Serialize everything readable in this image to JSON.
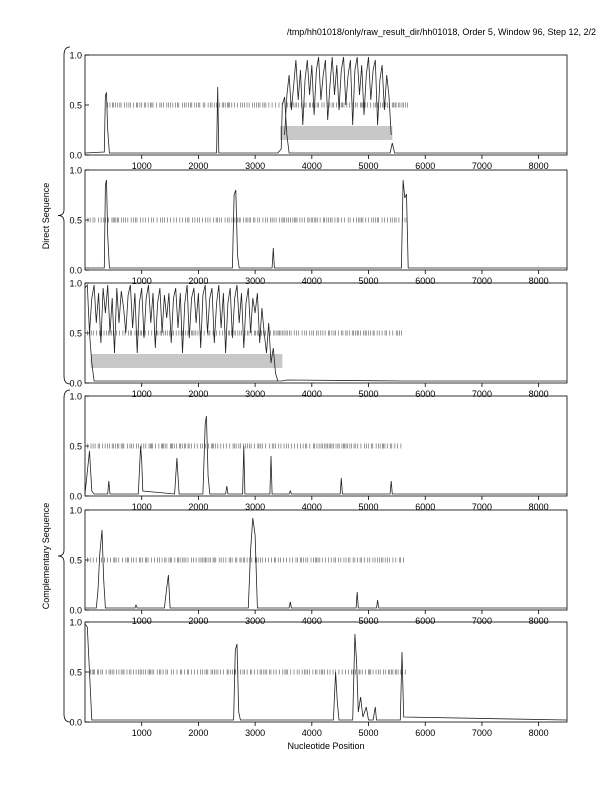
{
  "header": {
    "title": "/tmp/hh01018/only/raw_result_dir/hh01018, Order 5, Window 96, Step 12, 2/2"
  },
  "chart_data": {
    "type": "line",
    "xlabel": "Nucleotide Position",
    "group_labels": [
      "Direct Sequence",
      "Complementary Sequence"
    ],
    "xlim": [
      0,
      8500
    ],
    "ylim": [
      0,
      1
    ],
    "xticks": [
      1000,
      2000,
      3000,
      4000,
      5000,
      6000,
      7000,
      8000
    ],
    "yticks": [
      "0.0",
      "0.5",
      "1.0"
    ],
    "grid": false,
    "panels": [
      {
        "group": "Direct Sequence",
        "baseline": [
          [
            0,
            0.02
          ],
          [
            340,
            0.03
          ],
          [
            360,
            0.6
          ],
          [
            380,
            0.62
          ],
          [
            400,
            0.25
          ],
          [
            430,
            0.02
          ],
          [
            2320,
            0.02
          ],
          [
            2340,
            0.68
          ],
          [
            2360,
            0.02
          ],
          [
            3400,
            0.02
          ],
          [
            3460,
            0.06
          ],
          [
            3480,
            0.5
          ],
          [
            3520,
            0.58
          ],
          [
            3560,
            0.2
          ],
          [
            3600,
            0.02
          ],
          [
            5380,
            0.02
          ],
          [
            5420,
            0.12
          ],
          [
            5460,
            0.02
          ],
          [
            8500,
            0.02
          ]
        ],
        "signal": [
          [
            3520,
            0.2
          ],
          [
            3560,
            0.6
          ],
          [
            3600,
            0.8
          ],
          [
            3640,
            0.45
          ],
          [
            3680,
            0.7
          ],
          [
            3720,
            0.95
          ],
          [
            3760,
            0.55
          ],
          [
            3800,
            0.85
          ],
          [
            3840,
            0.3
          ],
          [
            3880,
            0.75
          ],
          [
            3920,
            0.95
          ],
          [
            3960,
            0.6
          ],
          [
            4000,
            0.9
          ],
          [
            4040,
            0.4
          ],
          [
            4080,
            0.85
          ],
          [
            4120,
            0.98
          ],
          [
            4160,
            0.55
          ],
          [
            4200,
            0.8
          ],
          [
            4240,
            0.95
          ],
          [
            4280,
            0.35
          ],
          [
            4320,
            0.7
          ],
          [
            4360,
            0.98
          ],
          [
            4400,
            0.6
          ],
          [
            4440,
            0.9
          ],
          [
            4480,
            0.45
          ],
          [
            4520,
            0.85
          ],
          [
            4560,
            0.98
          ],
          [
            4600,
            0.5
          ],
          [
            4640,
            0.8
          ],
          [
            4680,
            0.95
          ],
          [
            4720,
            0.3
          ],
          [
            4760,
            0.85
          ],
          [
            4800,
            0.98
          ],
          [
            4840,
            0.6
          ],
          [
            4880,
            0.9
          ],
          [
            4920,
            0.4
          ],
          [
            4960,
            0.8
          ],
          [
            5000,
            0.98
          ],
          [
            5040,
            0.55
          ],
          [
            5080,
            0.85
          ],
          [
            5120,
            0.95
          ],
          [
            5160,
            0.3
          ],
          [
            5200,
            0.75
          ],
          [
            5240,
            0.9
          ],
          [
            5280,
            0.45
          ],
          [
            5320,
            0.8
          ],
          [
            5360,
            0.6
          ],
          [
            5400,
            0.2
          ]
        ],
        "ticks_y": 0.5,
        "ticks_range": [
          400,
          5700
        ],
        "band": {
          "x_from": 3440,
          "x_to": 5420,
          "y": 0.22
        }
      },
      {
        "group": "Direct Sequence",
        "baseline": [
          [
            0,
            0.02
          ],
          [
            340,
            0.02
          ],
          [
            360,
            0.85
          ],
          [
            380,
            0.9
          ],
          [
            400,
            0.35
          ],
          [
            430,
            0.02
          ],
          [
            2600,
            0.02
          ],
          [
            2630,
            0.75
          ],
          [
            2660,
            0.8
          ],
          [
            2690,
            0.15
          ],
          [
            2720,
            0.02
          ],
          [
            3300,
            0.02
          ],
          [
            3320,
            0.22
          ],
          [
            3340,
            0.02
          ],
          [
            5580,
            0.02
          ],
          [
            5610,
            0.9
          ],
          [
            5640,
            0.72
          ],
          [
            5670,
            0.76
          ],
          [
            5700,
            0.02
          ],
          [
            8500,
            0.02
          ]
        ],
        "signal": [],
        "ticks_y": 0.5,
        "ticks_range": [
          0,
          5700
        ],
        "band": null
      },
      {
        "group": "Direct Sequence",
        "baseline": [
          [
            0,
            0.95
          ],
          [
            40,
            0.98
          ],
          [
            80,
            0.5
          ],
          [
            120,
            0.2
          ],
          [
            160,
            0.02
          ],
          [
            3480,
            0.02
          ],
          [
            3560,
            0.03
          ],
          [
            5600,
            0.02
          ],
          [
            8500,
            0.02
          ]
        ],
        "signal": [
          [
            80,
            0.5
          ],
          [
            120,
            0.85
          ],
          [
            160,
            0.98
          ],
          [
            200,
            0.6
          ],
          [
            240,
            0.9
          ],
          [
            280,
            0.4
          ],
          [
            320,
            0.95
          ],
          [
            360,
            0.7
          ],
          [
            400,
            0.98
          ],
          [
            440,
            0.5
          ],
          [
            480,
            0.85
          ],
          [
            520,
            0.3
          ],
          [
            560,
            0.95
          ],
          [
            600,
            0.6
          ],
          [
            640,
            0.92
          ],
          [
            680,
            0.75
          ],
          [
            720,
            0.5
          ],
          [
            760,
            0.88
          ],
          [
            800,
            0.98
          ],
          [
            840,
            0.55
          ],
          [
            880,
            0.9
          ],
          [
            920,
            0.3
          ],
          [
            960,
            0.8
          ],
          [
            1000,
            0.95
          ],
          [
            1040,
            0.45
          ],
          [
            1080,
            0.85
          ],
          [
            1120,
            0.98
          ],
          [
            1160,
            0.6
          ],
          [
            1200,
            0.9
          ],
          [
            1240,
            0.35
          ],
          [
            1280,
            0.8
          ],
          [
            1320,
            0.95
          ],
          [
            1360,
            0.5
          ],
          [
            1400,
            0.88
          ],
          [
            1440,
            0.65
          ],
          [
            1480,
            0.9
          ],
          [
            1520,
            0.4
          ],
          [
            1560,
            0.85
          ],
          [
            1600,
            0.95
          ],
          [
            1640,
            0.55
          ],
          [
            1680,
            0.9
          ],
          [
            1720,
            0.3
          ],
          [
            1760,
            0.8
          ],
          [
            1800,
            0.98
          ],
          [
            1840,
            0.45
          ],
          [
            1880,
            0.85
          ],
          [
            1920,
            0.95
          ],
          [
            1960,
            0.6
          ],
          [
            2000,
            0.9
          ],
          [
            2040,
            0.35
          ],
          [
            2080,
            0.88
          ],
          [
            2120,
            0.98
          ],
          [
            2160,
            0.5
          ],
          [
            2200,
            0.85
          ],
          [
            2240,
            0.95
          ],
          [
            2280,
            0.4
          ],
          [
            2320,
            0.8
          ],
          [
            2360,
            0.98
          ],
          [
            2400,
            0.55
          ],
          [
            2440,
            0.9
          ],
          [
            2480,
            0.3
          ],
          [
            2520,
            0.8
          ],
          [
            2560,
            0.95
          ],
          [
            2600,
            0.45
          ],
          [
            2640,
            0.85
          ],
          [
            2680,
            0.98
          ],
          [
            2720,
            0.6
          ],
          [
            2760,
            0.9
          ],
          [
            2800,
            0.35
          ],
          [
            2840,
            0.8
          ],
          [
            2880,
            0.95
          ],
          [
            2920,
            0.5
          ],
          [
            2960,
            0.85
          ],
          [
            3000,
            0.7
          ],
          [
            3040,
            0.9
          ],
          [
            3080,
            0.4
          ],
          [
            3120,
            0.75
          ],
          [
            3160,
            0.5
          ],
          [
            3200,
            0.3
          ],
          [
            3240,
            0.6
          ],
          [
            3280,
            0.2
          ],
          [
            3320,
            0.35
          ],
          [
            3360,
            0.1
          ],
          [
            3400,
            0.02
          ]
        ],
        "ticks_y": 0.5,
        "ticks_range": [
          0,
          5600
        ],
        "band": {
          "x_from": 100,
          "x_to": 3480,
          "y": 0.22
        }
      },
      {
        "group": "Complementary Sequence",
        "baseline": [
          [
            0,
            0.02
          ],
          [
            80,
            0.45
          ],
          [
            120,
            0.05
          ],
          [
            160,
            0.02
          ],
          [
            400,
            0.02
          ],
          [
            420,
            0.15
          ],
          [
            440,
            0.02
          ],
          [
            940,
            0.02
          ],
          [
            980,
            0.5
          ],
          [
            1000,
            0.35
          ],
          [
            1020,
            0.05
          ],
          [
            1580,
            0.02
          ],
          [
            1620,
            0.38
          ],
          [
            1660,
            0.02
          ],
          [
            2080,
            0.02
          ],
          [
            2120,
            0.72
          ],
          [
            2140,
            0.8
          ],
          [
            2170,
            0.2
          ],
          [
            2200,
            0.02
          ],
          [
            2480,
            0.02
          ],
          [
            2500,
            0.1
          ],
          [
            2520,
            0.02
          ],
          [
            2780,
            0.02
          ],
          [
            2800,
            0.5
          ],
          [
            2820,
            0.02
          ],
          [
            3260,
            0.02
          ],
          [
            3280,
            0.4
          ],
          [
            3300,
            0.02
          ],
          [
            3600,
            0.02
          ],
          [
            3620,
            0.05
          ],
          [
            3640,
            0.02
          ],
          [
            4500,
            0.02
          ],
          [
            4520,
            0.18
          ],
          [
            4540,
            0.02
          ],
          [
            5380,
            0.02
          ],
          [
            5400,
            0.15
          ],
          [
            5420,
            0.02
          ],
          [
            8500,
            0.02
          ]
        ],
        "signal": [],
        "ticks_y": 0.5,
        "ticks_range": [
          0,
          5600
        ],
        "band": null
      },
      {
        "group": "Complementary Sequence",
        "baseline": [
          [
            0,
            0.02
          ],
          [
            200,
            0.02
          ],
          [
            230,
            0.2
          ],
          [
            260,
            0.55
          ],
          [
            300,
            0.8
          ],
          [
            330,
            0.3
          ],
          [
            360,
            0.02
          ],
          [
            880,
            0.02
          ],
          [
            900,
            0.05
          ],
          [
            920,
            0.02
          ],
          [
            1400,
            0.02
          ],
          [
            1440,
            0.22
          ],
          [
            1470,
            0.35
          ],
          [
            1500,
            0.02
          ],
          [
            2880,
            0.02
          ],
          [
            2920,
            0.6
          ],
          [
            2960,
            0.92
          ],
          [
            3000,
            0.75
          ],
          [
            3040,
            0.02
          ],
          [
            3600,
            0.02
          ],
          [
            3620,
            0.08
          ],
          [
            3640,
            0.02
          ],
          [
            4780,
            0.02
          ],
          [
            4800,
            0.18
          ],
          [
            4820,
            0.02
          ],
          [
            5140,
            0.02
          ],
          [
            5160,
            0.1
          ],
          [
            5180,
            0.02
          ],
          [
            8500,
            0.02
          ]
        ],
        "signal": [],
        "ticks_y": 0.5,
        "ticks_range": [
          0,
          5650
        ],
        "band": null
      },
      {
        "group": "Complementary Sequence",
        "baseline": [
          [
            0,
            0.98
          ],
          [
            40,
            0.95
          ],
          [
            80,
            0.5
          ],
          [
            120,
            0.02
          ],
          [
            560,
            0.02
          ],
          [
            580,
            0.02
          ],
          [
            2620,
            0.02
          ],
          [
            2650,
            0.72
          ],
          [
            2680,
            0.78
          ],
          [
            2710,
            0.1
          ],
          [
            2740,
            0.02
          ],
          [
            4380,
            0.02
          ],
          [
            4420,
            0.5
          ],
          [
            4450,
            0.2
          ],
          [
            4480,
            0.02
          ],
          [
            4720,
            0.02
          ],
          [
            4760,
            0.88
          ],
          [
            4790,
            0.6
          ],
          [
            4820,
            0.1
          ],
          [
            4860,
            0.25
          ],
          [
            4900,
            0.05
          ],
          [
            4960,
            0.15
          ],
          [
            5000,
            0.02
          ],
          [
            5080,
            0.02
          ],
          [
            5120,
            0.15
          ],
          [
            5140,
            0.02
          ],
          [
            5560,
            0.02
          ],
          [
            5590,
            0.7
          ],
          [
            5620,
            0.05
          ],
          [
            8500,
            0.02
          ]
        ],
        "signal": [],
        "ticks_y": 0.5,
        "ticks_range": [
          100,
          5650
        ],
        "band": null
      }
    ]
  }
}
